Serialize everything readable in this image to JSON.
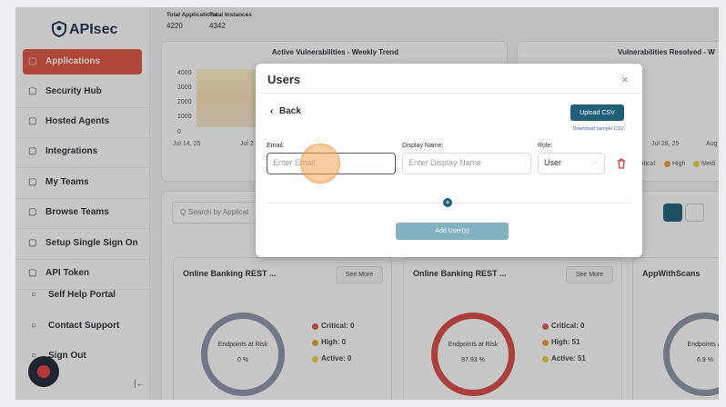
{
  "sidebar": {
    "logo": "APIsec",
    "nav": [
      "Applications",
      "Security Hub",
      "Hosted Agents",
      "Integrations",
      "My Teams",
      "Browse Teams",
      "Setup Single Sign On",
      "API Token"
    ],
    "footer": [
      "Self Help Portal",
      "Contact Support",
      "Sign Out"
    ]
  },
  "stats": [
    {
      "label": "Total Applications",
      "value": "4220"
    },
    {
      "label": "Total Instances",
      "value": "4342"
    }
  ],
  "trend_card": {
    "title": "Active Vulnerabilities - Weekly Trend",
    "y_labels": [
      "4000",
      "3000",
      "2000",
      "1000",
      "0"
    ],
    "x_labels": [
      "Jul 14, 25",
      "Jul 2"
    ]
  },
  "resolved_card": {
    "title": "Vulnerabilities Resolved - W",
    "x_labels": [
      "Jul 28, 25",
      "Aug"
    ],
    "legend": [
      "itical",
      "High",
      "Medi"
    ]
  },
  "search_placeholder": "Search by Applicat",
  "app_cards": [
    {
      "title": "Online Banking REST ...",
      "button": "See More",
      "center_label": "Endpoints at Risk",
      "percent": "0 %",
      "stats": [
        "Critical: 0",
        "High: 0",
        "Active: 0"
      ]
    },
    {
      "title": "Online Banking REST ...",
      "button": "See More",
      "center_label": "Endpoints at Risk",
      "percent": "87.93 %",
      "stats": [
        "Critical: 0",
        "High: 51",
        "Active: 51"
      ]
    },
    {
      "title": "AppWithScans",
      "center_label": "Endpoints at",
      "percent": "6.9 %"
    }
  ],
  "modal": {
    "title": "Users",
    "back": "Back",
    "upload": "Upload CSV",
    "download": "Download sample CSV",
    "email_label": "Email:",
    "email_placeholder": "Enter Email",
    "name_label": "Display Name:",
    "name_placeholder": "Enter Display Name",
    "role_label": "Role:",
    "role_value": "User",
    "submit": "Add User(s)"
  }
}
